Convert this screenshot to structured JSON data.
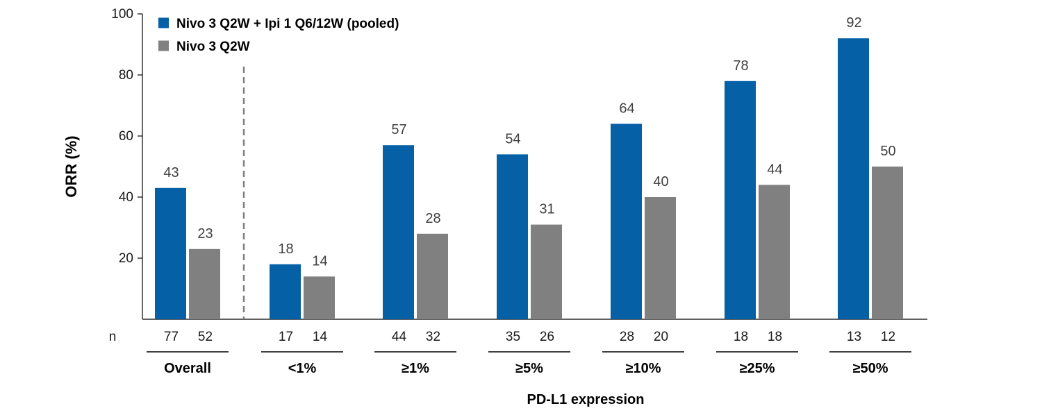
{
  "chart_data": {
    "type": "bar",
    "title": "",
    "ylabel": "ORR (%)",
    "xlabel": "PD-L1 expression",
    "ylim": [
      0,
      100
    ],
    "yticks": [
      20,
      40,
      60,
      80,
      100
    ],
    "n_label": "n",
    "categories": [
      "Overall",
      "<1%",
      "≥1%",
      "≥5%",
      "≥10%",
      "≥25%",
      "≥50%"
    ],
    "series": [
      {
        "name": "Nivo 3 Q2W + Ipi 1 Q6/12W (pooled)",
        "color": "#0560a6",
        "values": [
          43,
          18,
          57,
          54,
          64,
          78,
          92
        ],
        "n": [
          77,
          17,
          44,
          35,
          28,
          18,
          13
        ]
      },
      {
        "name": "Nivo 3 Q2W",
        "color": "#808080",
        "values": [
          23,
          14,
          28,
          31,
          40,
          44,
          50
        ],
        "n": [
          52,
          14,
          32,
          26,
          20,
          18,
          12
        ]
      }
    ],
    "legend_position": "top-left",
    "separator_after_category": "Overall"
  }
}
